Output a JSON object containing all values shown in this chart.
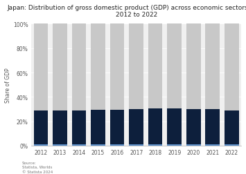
{
  "title": "Japan: Distribution of gross domestic product (GDP) across economic sectors from\n2012 to 2022",
  "ylabel": "Share of GDP",
  "years": [
    "2012",
    "2013",
    "2014",
    "2015",
    "2016",
    "2017",
    "2018",
    "2019",
    "2020",
    "2021",
    "2022"
  ],
  "agriculture": [
    1.1,
    1.1,
    1.1,
    1.1,
    1.1,
    1.1,
    1.1,
    1.1,
    1.1,
    1.1,
    1.1
  ],
  "industry": [
    27.5,
    27.8,
    27.5,
    28.4,
    28.5,
    29.0,
    29.3,
    29.2,
    28.8,
    29.1,
    27.8
  ],
  "services": [
    71.4,
    71.1,
    71.4,
    70.5,
    70.4,
    69.9,
    69.6,
    69.7,
    70.1,
    69.8,
    71.1
  ],
  "color_agriculture": "#5b8fc9",
  "color_industry": "#0d1f3c",
  "color_services": "#c8c8c8",
  "ylim": [
    0,
    100
  ],
  "yticks": [
    0,
    20,
    40,
    60,
    80,
    100
  ],
  "ytick_labels": [
    "0%",
    "20%",
    "40%",
    "60%",
    "80%",
    "100%"
  ],
  "title_fontsize": 6.5,
  "axis_fontsize": 5.5,
  "tick_fontsize": 5.5,
  "source_text": "Source:\nStatista, Worlds\n© Statista 2024",
  "plot_bg_color": "#f0f0f0",
  "background_color": "#ffffff"
}
